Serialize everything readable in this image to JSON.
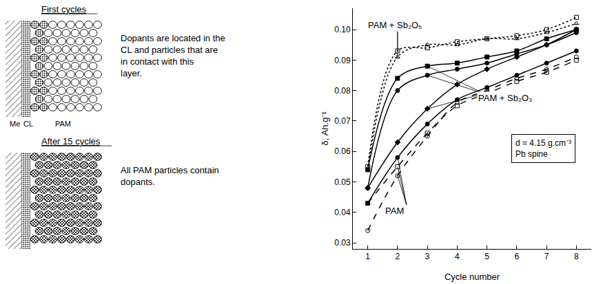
{
  "diagram": {
    "panels": [
      {
        "heading": "First cycles",
        "text": "Dopants are located in the CL and particles that are in contact with this layer.",
        "layer_labels": [
          "Me",
          "CL",
          "PAM"
        ]
      },
      {
        "heading": "After 15 cycles",
        "text": "All PAM particles contain dopants."
      }
    ]
  },
  "chart_data": {
    "type": "line",
    "x_label": "Cycle number",
    "y_label": "δ, Ah.g⁻¹",
    "x": [
      1,
      2,
      3,
      4,
      5,
      6,
      7,
      8
    ],
    "xlim": [
      0.5,
      8.5
    ],
    "xticks": [
      1,
      2,
      3,
      4,
      5,
      6,
      7,
      8
    ],
    "ylim": [
      0.028,
      0.107
    ],
    "yticks": [
      0.03,
      0.04,
      0.05,
      0.06,
      0.07,
      0.08,
      0.09,
      {
        "value": 0.1,
        "label": "0.10"
      }
    ],
    "grid": false,
    "annotations": [
      [
        "d = 4.15 g.cm⁻³",
        "Pb spine"
      ]
    ],
    "series": [
      {
        "name": "PAM + Sb₂O₅",
        "color": "#000000",
        "marker": "square-open",
        "line_style": "dotted",
        "values": [
          0.055,
          0.093,
          0.094,
          0.096,
          0.097,
          0.098,
          0.1,
          0.104
        ]
      },
      {
        "name": "PAM + Sb₂O₅",
        "color": "#000000",
        "marker": "triangle-up-open",
        "line_style": "dotted",
        "values": [
          0.054,
          0.091,
          0.095,
          0.095,
          0.097,
          0.097,
          0.099,
          0.102
        ]
      },
      {
        "name": "PAM + Sb₂O₃",
        "color": "#000000",
        "marker": "square",
        "line_style": "solid",
        "values": [
          0.054,
          0.084,
          0.088,
          0.089,
          0.091,
          0.093,
          0.097,
          0.1
        ]
      },
      {
        "name": "PAM + Sb₂O₃",
        "color": "#000000",
        "marker": "circle",
        "line_style": "solid",
        "values": [
          0.048,
          0.08,
          0.085,
          0.087,
          0.089,
          0.092,
          0.095,
          0.099
        ]
      },
      {
        "name": "PAM + Sb₂O₃",
        "color": "#000000",
        "marker": "diamond",
        "line_style": "solid",
        "values": [
          0.048,
          0.063,
          0.074,
          0.082,
          0.087,
          0.091,
          0.095,
          0.1
        ]
      },
      {
        "name": "PAM",
        "color": "#000000",
        "marker": "circle",
        "line_style": "solid",
        "values": [
          0.043,
          0.058,
          0.069,
          0.077,
          0.081,
          0.085,
          0.089,
          0.093
        ]
      },
      {
        "name": "PAM",
        "color": "#000000",
        "marker": "circle-open",
        "line_style": "dashed",
        "values": [
          0.034,
          0.052,
          0.065,
          0.076,
          0.08,
          0.084,
          0.087,
          0.091
        ]
      },
      {
        "name": "PAM",
        "color": "#000000",
        "marker": "square-open",
        "line_style": "dashed",
        "values": [
          0.043,
          0.055,
          0.066,
          0.075,
          0.079,
          0.083,
          0.086,
          0.09
        ]
      }
    ]
  }
}
